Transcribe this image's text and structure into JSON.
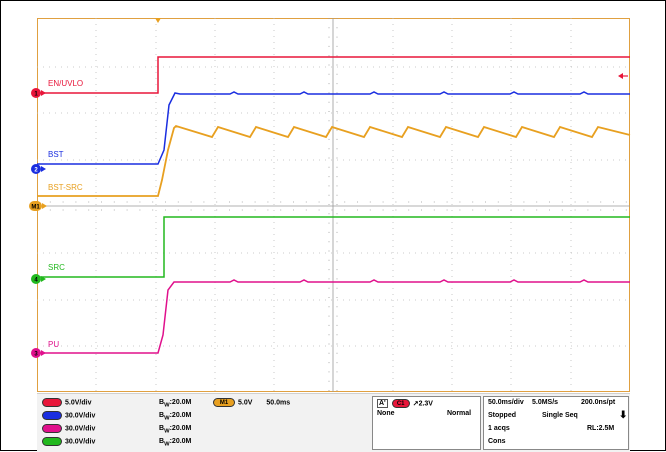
{
  "colors": {
    "ch1": "#e8163a",
    "ch2": "#1a2ee0",
    "ch3": "#e0108c",
    "ch4": "#22b81e",
    "math": "#e8a020",
    "frame": "#e0a040"
  },
  "traces": {
    "ch1_label": "EN/UVLO",
    "ch2_label": "BST",
    "math_label": "BST-SRC",
    "ch4_label": "SRC",
    "ch3_label": "PU"
  },
  "markers": {
    "ch1": "1",
    "ch2": "2",
    "math": "M1",
    "ch4": "4",
    "ch3": "3"
  },
  "channels": [
    {
      "id": "C1",
      "scale": "5.0V/div",
      "bw": "20.0M"
    },
    {
      "id": "C2",
      "scale": "30.0V/div",
      "bw": "20.0M"
    },
    {
      "id": "C3",
      "scale": "30.0V/div",
      "bw": "20.0M"
    },
    {
      "id": "C4",
      "scale": "30.0V/div",
      "bw": "20.0M"
    }
  ],
  "bw_prefix": "B",
  "bw_sub": "W",
  "math": {
    "id": "M1",
    "scale": "5.0V",
    "time": "50.0ms"
  },
  "trigger": {
    "label": "A'",
    "source": "C1",
    "level": "2.3V",
    "coupling": "None",
    "mode": "Normal"
  },
  "acq": {
    "timebase": "50.0ms/div",
    "sample_rate": "5.0MS/s",
    "resolution": "200.0ns/pt",
    "state": "Stopped",
    "seq": "Single Seq",
    "acqs": "1 acqs",
    "rl": "RL:2.5M",
    "cons": "Cons"
  }
}
